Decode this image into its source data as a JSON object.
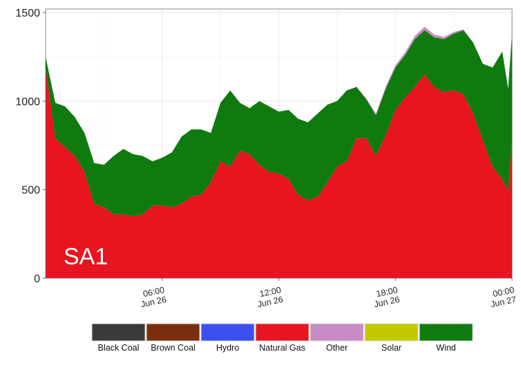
{
  "chart_data": {
    "type": "area",
    "stacked": true,
    "region_label": "SA1",
    "ylim": [
      0,
      1520
    ],
    "y_ticks": [
      0,
      500,
      1000,
      1500
    ],
    "x_start": "2015-06-26 00:00",
    "x_end": "2015-06-27 00:00",
    "x_ticks": [
      {
        "hour": 6,
        "time": "06:00",
        "date": "Jun 26"
      },
      {
        "hour": 12,
        "time": "12:00",
        "date": "Jun 26"
      },
      {
        "hour": 18,
        "time": "18:00",
        "date": "Jun 26"
      },
      {
        "hour": 24,
        "time": "00:00",
        "date": "Jun 27"
      }
    ],
    "grid": true,
    "legend_position": "bottom",
    "legend": [
      {
        "name": "Black Coal",
        "color": "#3a3a3a"
      },
      {
        "name": "Brown Coal",
        "color": "#7a2e0e"
      },
      {
        "name": "Hydro",
        "color": "#3b50ee"
      },
      {
        "name": "Natural Gas",
        "color": "#e8141f"
      },
      {
        "name": "Other",
        "color": "#c88ac4"
      },
      {
        "name": "Solar",
        "color": "#c4c800"
      },
      {
        "name": "Wind",
        "color": "#0f7b0f"
      }
    ],
    "hours": [
      0,
      0.5,
      1,
      1.5,
      2,
      2.5,
      3,
      3.5,
      4,
      4.5,
      5,
      5.5,
      6,
      6.5,
      7,
      7.5,
      8,
      8.5,
      9,
      9.5,
      10,
      10.5,
      11,
      11.5,
      12,
      12.5,
      13,
      13.5,
      14,
      14.5,
      15,
      15.5,
      16,
      16.5,
      17,
      17.5,
      18,
      18.5,
      19,
      19.5,
      20,
      20.5,
      21,
      21.5,
      22,
      22.5,
      23,
      23.5,
      23.8,
      24
    ],
    "series": [
      {
        "name": "Natural Gas",
        "values": [
          1190,
          790,
          740,
          690,
          600,
          420,
          400,
          360,
          360,
          350,
          360,
          410,
          410,
          400,
          420,
          460,
          470,
          540,
          660,
          630,
          720,
          700,
          640,
          600,
          590,
          560,
          470,
          440,
          460,
          540,
          630,
          660,
          790,
          790,
          690,
          810,
          950,
          1020,
          1080,
          1150,
          1080,
          1050,
          1060,
          1040,
          930,
          780,
          630,
          560,
          490,
          780
        ]
      },
      {
        "name": "Wind",
        "values": [
          60,
          200,
          230,
          220,
          220,
          230,
          240,
          330,
          370,
          350,
          330,
          250,
          270,
          310,
          380,
          380,
          370,
          280,
          330,
          430,
          270,
          260,
          360,
          370,
          350,
          390,
          430,
          440,
          470,
          440,
          370,
          400,
          290,
          220,
          230,
          260,
          240,
          240,
          270,
          250,
          280,
          300,
          320,
          360,
          400,
          430,
          560,
          720,
          580,
          600
        ]
      },
      {
        "name": "Other",
        "values": [
          0,
          0,
          0,
          0,
          0,
          0,
          0,
          0,
          0,
          0,
          0,
          0,
          0,
          0,
          0,
          0,
          0,
          0,
          0,
          0,
          0,
          0,
          0,
          0,
          0,
          0,
          0,
          0,
          0,
          0,
          0,
          0,
          0,
          5,
          8,
          10,
          12,
          15,
          18,
          20,
          15,
          12,
          10,
          5,
          0,
          0,
          0,
          0,
          0,
          0
        ]
      }
    ]
  }
}
